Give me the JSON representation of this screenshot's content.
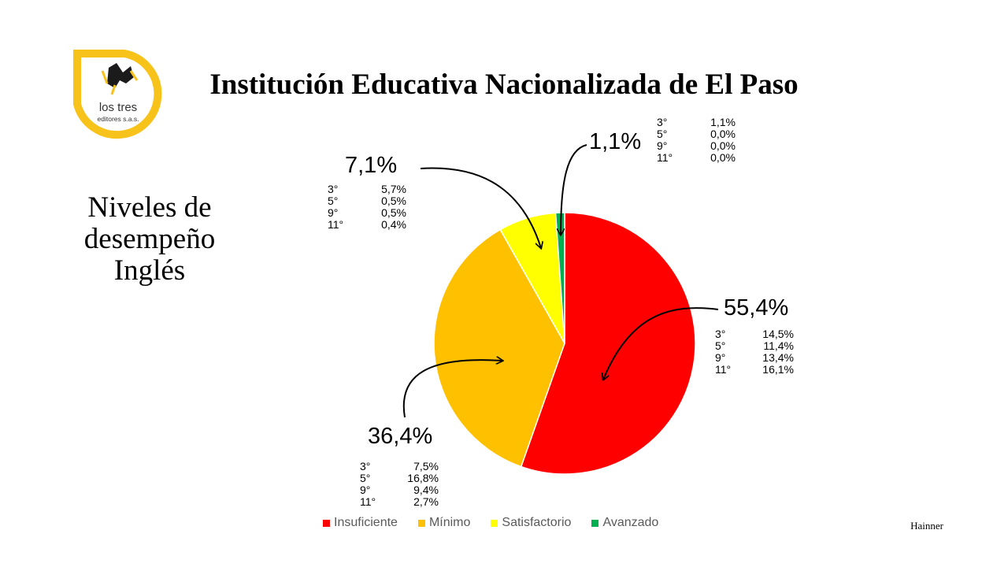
{
  "header": {
    "title": "Institución Educativa Nacionalizada de El Paso",
    "subtitle": "Niveles de desempeño Inglés",
    "author": "Hainner"
  },
  "logo": {
    "line1": "los tres",
    "line2": "editores s.a.s.",
    "color": "#f7c31b"
  },
  "chart_data": {
    "type": "pie",
    "categories": [
      "Insuficiente",
      "Mínimo",
      "Satisfactorio",
      "Avanzado"
    ],
    "values": [
      55.4,
      36.4,
      7.1,
      1.1
    ],
    "labels": [
      "55,4%",
      "36,4%",
      "7,1%",
      "1,1%"
    ],
    "colors": [
      "#ff0000",
      "#ffc000",
      "#ffff00",
      "#00b050"
    ],
    "legend_position": "bottom",
    "breakdowns": {
      "insuficiente": [
        {
          "grade": "3°",
          "value": "14,5%"
        },
        {
          "grade": "5°",
          "value": "11,4%"
        },
        {
          "grade": "9°",
          "value": "13,4%"
        },
        {
          "grade": "11°",
          "value": "16,1%"
        }
      ],
      "minimo": [
        {
          "grade": "3°",
          "value": "7,5%"
        },
        {
          "grade": "5°",
          "value": "16,8%"
        },
        {
          "grade": "9°",
          "value": "9,4%"
        },
        {
          "grade": "11°",
          "value": "2,7%"
        }
      ],
      "satisfactorio": [
        {
          "grade": "3°",
          "value": "5,7%"
        },
        {
          "grade": "5°",
          "value": "0,5%"
        },
        {
          "grade": "9°",
          "value": "0,5%"
        },
        {
          "grade": "11°",
          "value": "0,4%"
        }
      ],
      "avanzado": [
        {
          "grade": "3°",
          "value": "1,1%"
        },
        {
          "grade": "5°",
          "value": "0,0%"
        },
        {
          "grade": "9°",
          "value": "0,0%"
        },
        {
          "grade": "11°",
          "value": "0,0%"
        }
      ]
    }
  }
}
